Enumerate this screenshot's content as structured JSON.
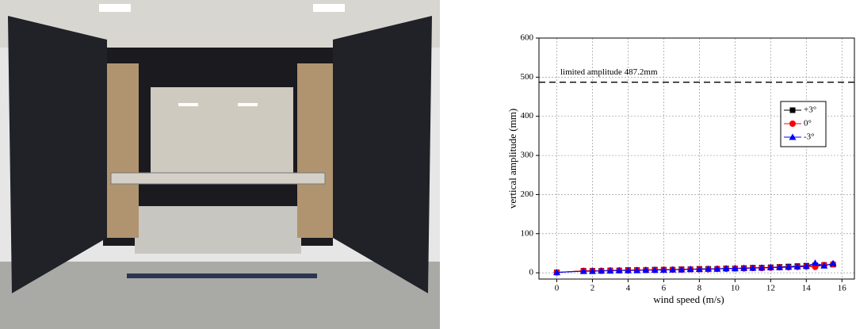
{
  "chart_data": {
    "type": "line",
    "xlabel": "wind speed (m/s)",
    "ylabel": "vertical amplitude (mm)",
    "annotation": "limited amplitude 487.2mm",
    "threshold": 487.2,
    "x": [
      0,
      1.5,
      2,
      2.5,
      3,
      3.5,
      4,
      4.5,
      5,
      5.5,
      6,
      6.5,
      7,
      7.5,
      8,
      8.5,
      9,
      9.5,
      10,
      10.5,
      11,
      11.5,
      12,
      12.5,
      13,
      13.5,
      14,
      14.5,
      15,
      15.5
    ],
    "series": [
      {
        "name": "+3°",
        "color": "#000000",
        "marker": "square",
        "values": [
          1,
          5,
          5,
          5,
          6,
          6,
          7,
          7,
          7,
          8,
          8,
          8,
          9,
          9,
          10,
          10,
          10,
          11,
          11,
          12,
          13,
          13,
          14,
          15,
          16,
          17,
          18,
          19,
          20,
          21
        ]
      },
      {
        "name": "0°",
        "color": "#ff0000",
        "marker": "circle",
        "values": [
          1,
          5,
          5,
          5,
          6,
          6,
          6,
          7,
          7,
          7,
          8,
          8,
          8,
          9,
          9,
          9,
          10,
          10,
          11,
          11,
          12,
          12,
          13,
          14,
          14,
          15,
          16,
          15,
          20,
          22
        ]
      },
      {
        "name": "-3°",
        "color": "#0000ff",
        "marker": "triangle",
        "values": [
          1,
          4,
          4,
          5,
          5,
          6,
          6,
          6,
          7,
          7,
          7,
          8,
          8,
          9,
          9,
          10,
          10,
          11,
          11,
          12,
          12,
          13,
          14,
          14,
          15,
          16,
          17,
          25,
          18,
          24
        ]
      }
    ],
    "xlim": [
      -1,
      16.7
    ],
    "xticks": [
      0,
      2,
      4,
      6,
      8,
      10,
      12,
      14,
      16
    ],
    "ylim": [
      -16,
      600
    ],
    "yticks": [
      0,
      100,
      200,
      300,
      400,
      500,
      600
    ],
    "grid": true,
    "legend": "upper right"
  }
}
